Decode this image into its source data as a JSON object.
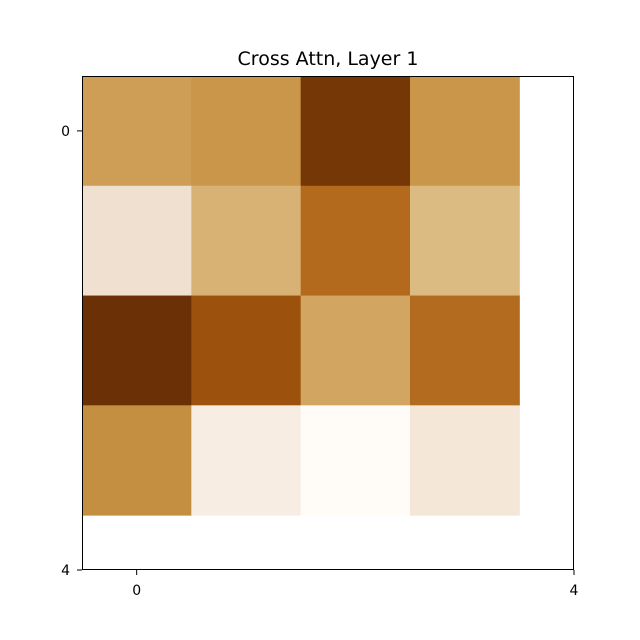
{
  "chart_data": {
    "type": "heatmap",
    "title": "Cross Attn, Layer 1",
    "xlabel": "",
    "ylabel": "",
    "rows": 4,
    "cols": 4,
    "xlim": [
      -0.5,
      4
    ],
    "ylim": [
      4,
      -0.5
    ],
    "x_ticks": [
      0,
      4
    ],
    "y_ticks": [
      0,
      4
    ],
    "x_tick_labels": [
      "0",
      "4"
    ],
    "y_tick_labels": [
      "0",
      "4"
    ],
    "values": [
      [
        0.45,
        0.48,
        0.93,
        0.48
      ],
      [
        0.08,
        0.36,
        0.68,
        0.31
      ],
      [
        0.98,
        0.8,
        0.42,
        0.68
      ],
      [
        0.52,
        0.04,
        0.0,
        0.07
      ]
    ],
    "cell_colors": [
      [
        "#CE9E56",
        "#CA964A",
        "#753706",
        "#CA974A"
      ],
      [
        "#F0E0D0",
        "#D8B274",
        "#B36A1C",
        "#DBBB82"
      ],
      [
        "#6C3006",
        "#9C520C",
        "#D2A660",
        "#B36C1F"
      ],
      [
        "#C48F41",
        "#F8EDE2",
        "#FFFCF7",
        "#F4E7D7"
      ]
    ],
    "colormap": "copper_r",
    "grid": false,
    "legend": "none"
  }
}
